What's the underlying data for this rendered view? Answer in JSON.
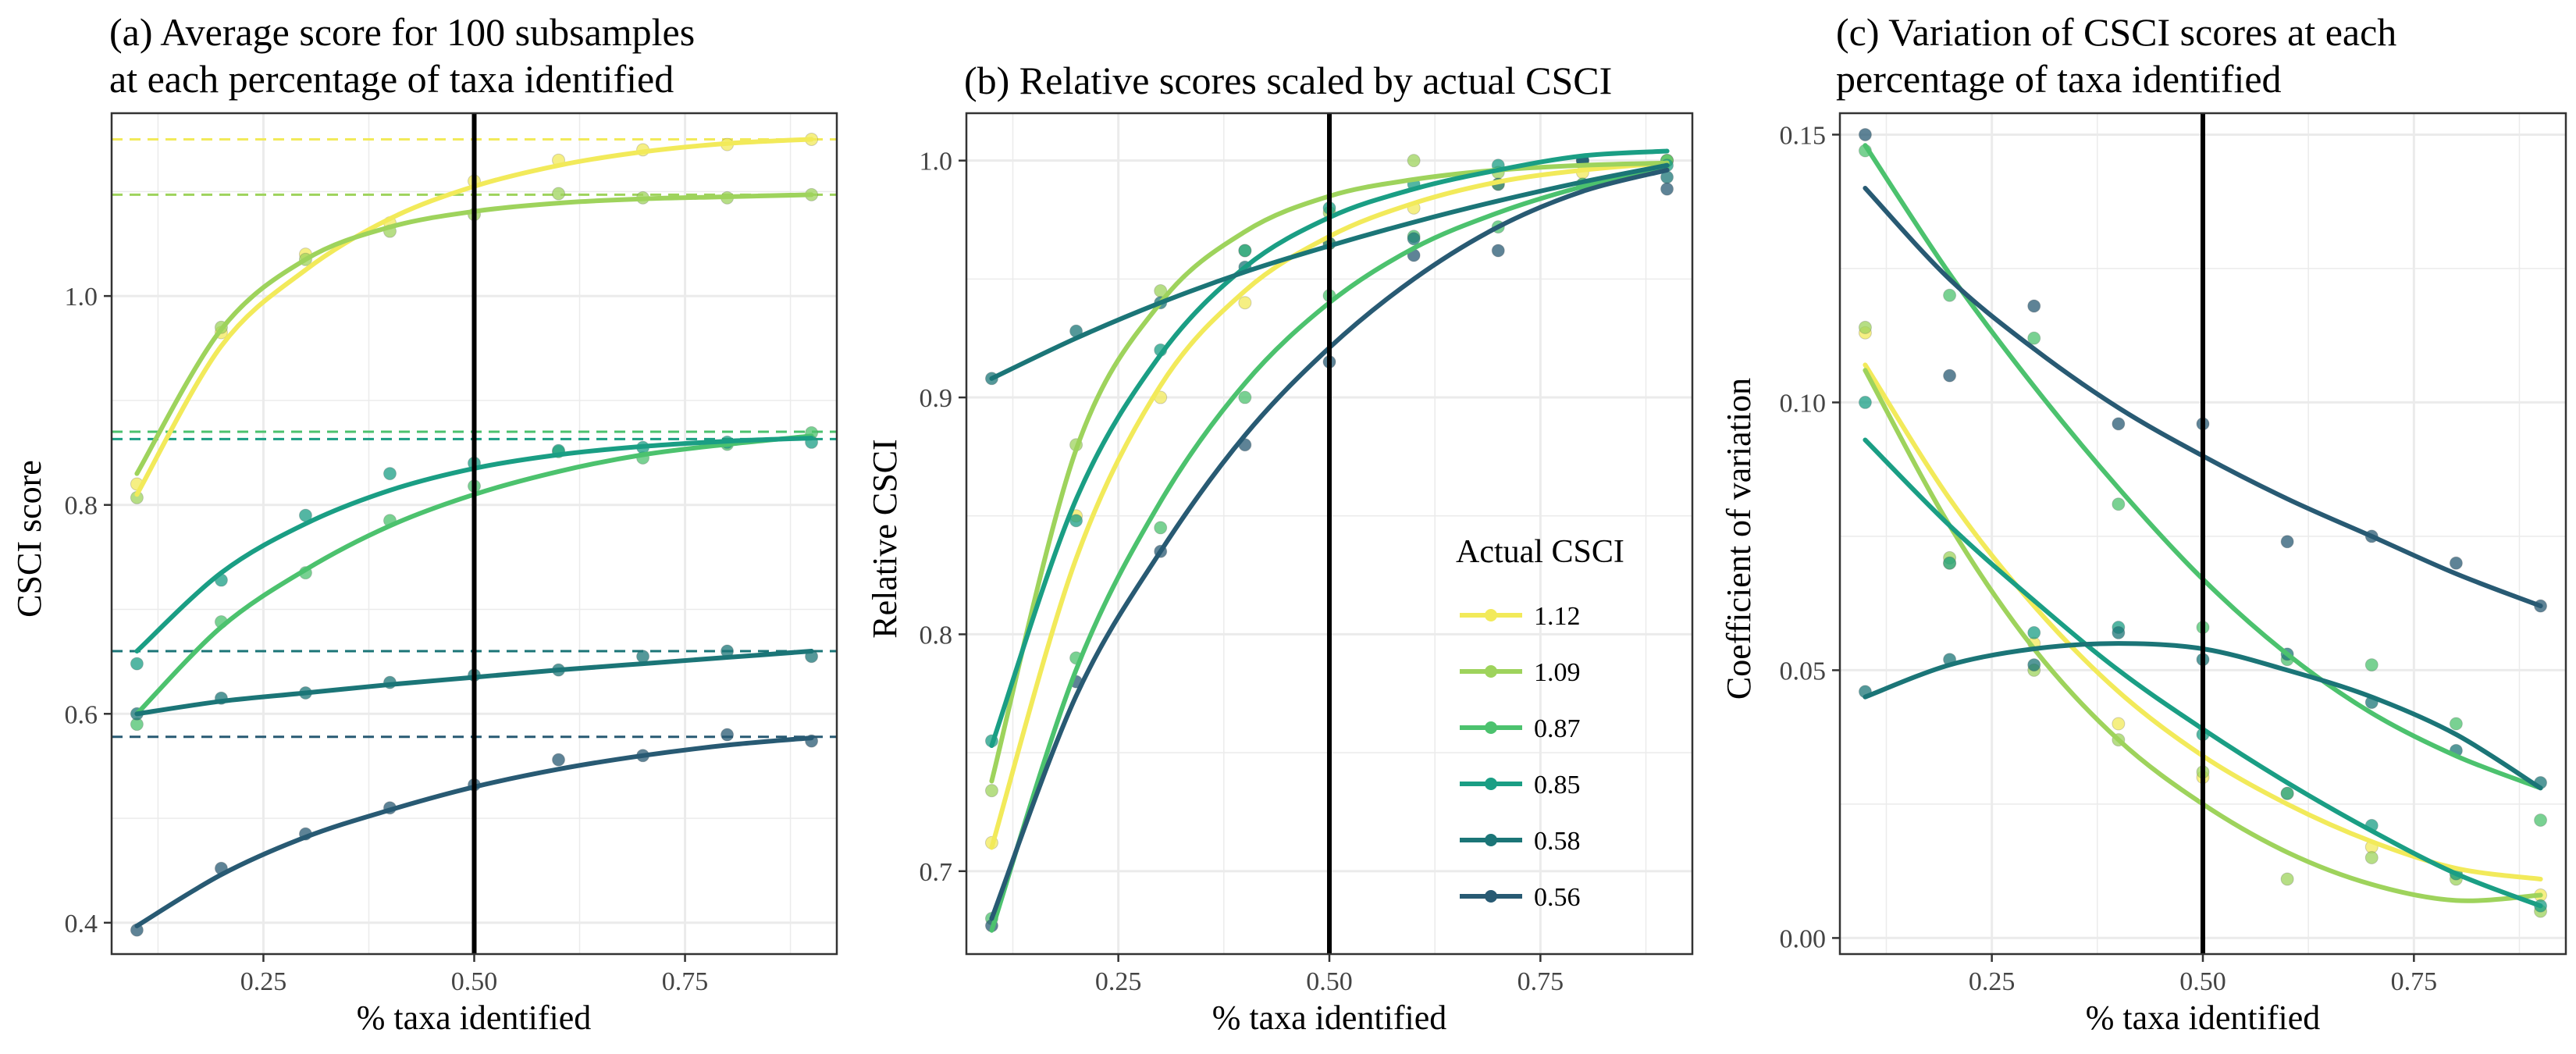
{
  "colors": {
    "1.12": "#f2ea5a",
    "1.09": "#9ed35c",
    "0.87": "#4cc26e",
    "0.85": "#1a9e84",
    "0.58": "#1b7577",
    "0.56": "#285a73",
    "vline": "#000000",
    "grid": "#ebebeb",
    "frame": "#333333"
  },
  "legend": {
    "title": "Actual CSCI",
    "items": [
      "1.12",
      "1.09",
      "0.87",
      "0.85",
      "0.58",
      "0.56"
    ]
  },
  "chart_data": [
    {
      "id": "a",
      "type": "scatter",
      "title_lines": [
        "(a) Average score for 100 subsamples",
        "at each percentage of taxa identified"
      ],
      "xlabel": "% taxa identified",
      "ylabel": "CSCI score",
      "xlim": [
        0.07,
        0.93
      ],
      "ylim": [
        0.37,
        1.175
      ],
      "xticks": [
        0.25,
        0.5,
        0.75
      ],
      "xtick_labels": [
        "0.25",
        "0.50",
        "0.75"
      ],
      "yticks": [
        0.4,
        0.6,
        0.8,
        1.0
      ],
      "ytick_labels": [
        "0.4",
        "0.6",
        "0.8",
        "1.0"
      ],
      "vline": 0.5,
      "grid": true,
      "x": [
        0.1,
        0.2,
        0.3,
        0.4,
        0.5,
        0.6,
        0.7,
        0.8,
        0.9
      ],
      "hlines": [
        {
          "series": "1.12",
          "y": 1.15
        },
        {
          "series": "1.09",
          "y": 1.097
        },
        {
          "series": "0.87",
          "y": 0.87
        },
        {
          "series": "0.85",
          "y": 0.863
        },
        {
          "series": "0.58",
          "y": 0.66
        },
        {
          "series": "0.56",
          "y": 0.578
        }
      ],
      "series": [
        {
          "name": "1.12",
          "values": [
            0.82,
            0.965,
            1.04,
            1.07,
            1.11,
            1.13,
            1.14,
            1.145,
            1.15
          ]
        },
        {
          "name": "1.09",
          "values": [
            0.807,
            0.97,
            1.035,
            1.062,
            1.078,
            1.098,
            1.094,
            1.094,
            1.097
          ]
        },
        {
          "name": "0.87",
          "values": [
            0.59,
            0.688,
            0.735,
            0.785,
            0.818,
            0.851,
            0.845,
            0.858,
            0.869
          ]
        },
        {
          "name": "0.85",
          "values": [
            0.648,
            0.728,
            0.79,
            0.83,
            0.84,
            0.852,
            0.855,
            0.86,
            0.86
          ]
        },
        {
          "name": "0.58",
          "values": [
            0.6,
            0.615,
            0.62,
            0.63,
            0.637,
            0.642,
            0.655,
            0.66,
            0.655
          ]
        },
        {
          "name": "0.56",
          "values": [
            0.393,
            0.452,
            0.485,
            0.51,
            0.532,
            0.556,
            0.56,
            0.58,
            0.574
          ]
        }
      ],
      "fits": [
        {
          "series": "1.12",
          "y": [
            0.81,
            0.952,
            1.025,
            1.074,
            1.105,
            1.125,
            1.138,
            1.146,
            1.15
          ]
        },
        {
          "series": "1.09",
          "y": [
            0.83,
            0.968,
            1.035,
            1.066,
            1.081,
            1.089,
            1.093,
            1.095,
            1.097
          ]
        },
        {
          "series": "0.87",
          "y": [
            0.6,
            0.683,
            0.738,
            0.78,
            0.81,
            0.832,
            0.848,
            0.858,
            0.866
          ]
        },
        {
          "series": "0.85",
          "y": [
            0.66,
            0.735,
            0.782,
            0.814,
            0.835,
            0.848,
            0.856,
            0.861,
            0.864
          ]
        },
        {
          "series": "0.58",
          "y": [
            0.6,
            0.612,
            0.62,
            0.628,
            0.635,
            0.642,
            0.648,
            0.654,
            0.66
          ]
        },
        {
          "series": "0.56",
          "y": [
            0.397,
            0.446,
            0.482,
            0.508,
            0.53,
            0.547,
            0.56,
            0.57,
            0.577
          ]
        }
      ]
    },
    {
      "id": "b",
      "type": "scatter",
      "title_lines": [
        "(b) Relative scores scaled by actual CSCI"
      ],
      "xlabel": "% taxa identified",
      "ylabel": "Relative CSCI",
      "xlim": [
        0.07,
        0.93
      ],
      "ylim": [
        0.665,
        1.02
      ],
      "xticks": [
        0.25,
        0.5,
        0.75
      ],
      "xtick_labels": [
        "0.25",
        "0.50",
        "0.75"
      ],
      "yticks": [
        0.7,
        0.8,
        0.9,
        1.0
      ],
      "ytick_labels": [
        "0.7",
        "0.8",
        "0.9",
        "1.0"
      ],
      "vline": 0.5,
      "grid": true,
      "legend_position": "bottom-right",
      "x": [
        0.1,
        0.2,
        0.3,
        0.4,
        0.5,
        0.6,
        0.7,
        0.8,
        0.9
      ],
      "series": [
        {
          "name": "1.12",
          "values": [
            0.712,
            0.85,
            0.9,
            0.94,
            0.965,
            0.98,
            0.99,
            0.995,
            1.0
          ]
        },
        {
          "name": "1.09",
          "values": [
            0.734,
            0.88,
            0.945,
            0.962,
            0.978,
            1.0,
            0.995,
            0.99,
            1.0
          ]
        },
        {
          "name": "0.87",
          "values": [
            0.68,
            0.79,
            0.845,
            0.9,
            0.943,
            0.968,
            0.972,
            0.99,
            1.0
          ]
        },
        {
          "name": "0.85",
          "values": [
            0.755,
            0.848,
            0.92,
            0.962,
            0.98,
            0.99,
            0.998,
            1.0,
            0.998
          ]
        },
        {
          "name": "0.58",
          "values": [
            0.908,
            0.928,
            0.94,
            0.955,
            0.965,
            0.967,
            0.99,
            1.0,
            0.993
          ]
        },
        {
          "name": "0.56",
          "values": [
            0.677,
            0.78,
            0.835,
            0.88,
            0.915,
            0.96,
            0.962,
            1.0,
            0.988
          ]
        }
      ],
      "fits": [
        {
          "series": "1.12",
          "y": [
            0.71,
            0.832,
            0.905,
            0.945,
            0.968,
            0.982,
            0.991,
            0.996,
            0.999
          ]
        },
        {
          "series": "1.09",
          "y": [
            0.738,
            0.878,
            0.94,
            0.97,
            0.985,
            0.992,
            0.996,
            0.998,
            0.999
          ]
        },
        {
          "name": "0.87",
          "series": "0.87",
          "y": [
            0.675,
            0.785,
            0.856,
            0.906,
            0.94,
            0.963,
            0.978,
            0.989,
            0.997
          ]
        },
        {
          "series": "0.85",
          "y": [
            0.753,
            0.857,
            0.918,
            0.955,
            0.976,
            0.988,
            0.996,
            1.002,
            1.004
          ]
        },
        {
          "series": "0.58",
          "y": [
            0.908,
            0.925,
            0.94,
            0.953,
            0.964,
            0.974,
            0.983,
            0.991,
            0.998
          ]
        },
        {
          "series": "0.56",
          "y": [
            0.68,
            0.774,
            0.835,
            0.884,
            0.921,
            0.95,
            0.972,
            0.987,
            0.996
          ]
        }
      ]
    },
    {
      "id": "c",
      "type": "scatter",
      "title_lines": [
        "(c) Variation of CSCI scores at each",
        "percentage of taxa identified"
      ],
      "xlabel": "% taxa identified",
      "ylabel": "Coefficient of variation",
      "xlim": [
        0.07,
        0.93
      ],
      "ylim": [
        -0.003,
        0.154
      ],
      "xticks": [
        0.25,
        0.5,
        0.75
      ],
      "xtick_labels": [
        "0.25",
        "0.50",
        "0.75"
      ],
      "yticks": [
        0.0,
        0.05,
        0.1,
        0.15
      ],
      "ytick_labels": [
        "0.00",
        "0.05",
        "0.10",
        "0.15"
      ],
      "vline": 0.5,
      "grid": true,
      "x": [
        0.1,
        0.2,
        0.3,
        0.4,
        0.5,
        0.6,
        0.7,
        0.8,
        0.9
      ],
      "series": [
        {
          "name": "1.12",
          "values": [
            0.113,
            0.07,
            0.055,
            0.04,
            0.03,
            0.027,
            0.017,
            0.012,
            0.008
          ]
        },
        {
          "name": "1.09",
          "values": [
            0.114,
            0.071,
            0.05,
            0.037,
            0.031,
            0.011,
            0.015,
            0.011,
            0.005
          ]
        },
        {
          "name": "0.87",
          "values": [
            0.147,
            0.12,
            0.112,
            0.081,
            0.058,
            0.052,
            0.051,
            0.04,
            0.022
          ]
        },
        {
          "name": "0.85",
          "values": [
            0.1,
            0.07,
            0.057,
            0.058,
            0.038,
            0.027,
            0.021,
            0.012,
            0.006
          ]
        },
        {
          "name": "0.58",
          "values": [
            0.046,
            0.052,
            0.051,
            0.057,
            0.052,
            0.053,
            0.044,
            0.035,
            0.029
          ]
        },
        {
          "name": "0.56",
          "values": [
            0.15,
            0.105,
            0.118,
            0.096,
            0.096,
            0.074,
            0.075,
            0.07,
            0.062
          ]
        }
      ],
      "fits": [
        {
          "series": "1.12",
          "y": [
            0.107,
            0.082,
            0.062,
            0.046,
            0.034,
            0.025,
            0.018,
            0.013,
            0.011
          ]
        },
        {
          "series": "1.09",
          "y": [
            0.106,
            0.077,
            0.054,
            0.037,
            0.025,
            0.016,
            0.01,
            0.007,
            0.008
          ]
        },
        {
          "series": "0.87",
          "y": [
            0.148,
            0.124,
            0.103,
            0.084,
            0.067,
            0.053,
            0.042,
            0.034,
            0.028
          ]
        },
        {
          "series": "0.85",
          "y": [
            0.093,
            0.077,
            0.063,
            0.05,
            0.039,
            0.029,
            0.02,
            0.012,
            0.006
          ]
        },
        {
          "series": "0.58",
          "y": [
            0.045,
            0.051,
            0.054,
            0.055,
            0.054,
            0.05,
            0.045,
            0.038,
            0.028
          ]
        },
        {
          "series": "0.56",
          "y": [
            0.14,
            0.123,
            0.11,
            0.099,
            0.09,
            0.082,
            0.075,
            0.068,
            0.062
          ]
        }
      ]
    }
  ]
}
